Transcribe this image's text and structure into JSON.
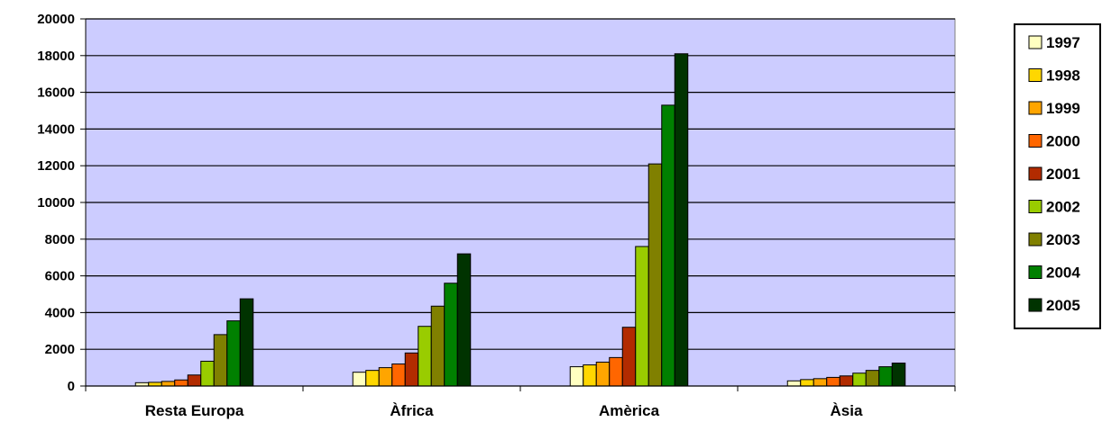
{
  "chart_data": {
    "type": "bar",
    "title": "",
    "xlabel": "",
    "ylabel": "",
    "ylim": [
      0,
      20000
    ],
    "y_ticks": [
      0,
      2000,
      4000,
      6000,
      8000,
      10000,
      12000,
      14000,
      16000,
      18000,
      20000
    ],
    "grid": true,
    "legend_position": "right",
    "plot_background": "#ccccff",
    "categories": [
      "Resta Europa",
      "Àfrica",
      "Amèrica",
      "Àsia"
    ],
    "series": [
      {
        "name": "1997",
        "color": "#ffffc0",
        "values": [
          180,
          750,
          1050,
          280
        ]
      },
      {
        "name": "1998",
        "color": "#ffd700",
        "values": [
          200,
          850,
          1150,
          350
        ]
      },
      {
        "name": "1999",
        "color": "#ffa500",
        "values": [
          250,
          1000,
          1300,
          400
        ]
      },
      {
        "name": "2000",
        "color": "#ff6600",
        "values": [
          330,
          1200,
          1550,
          470
        ]
      },
      {
        "name": "2001",
        "color": "#b22b00",
        "values": [
          600,
          1800,
          3200,
          550
        ]
      },
      {
        "name": "2002",
        "color": "#99cc00",
        "values": [
          1350,
          3250,
          7600,
          700
        ]
      },
      {
        "name": "2003",
        "color": "#808000",
        "values": [
          2800,
          4350,
          12100,
          850
        ]
      },
      {
        "name": "2004",
        "color": "#008000",
        "values": [
          3550,
          5600,
          15300,
          1050
        ]
      },
      {
        "name": "2005",
        "color": "#003300",
        "values": [
          4750,
          7200,
          18100,
          1250
        ]
      }
    ]
  }
}
